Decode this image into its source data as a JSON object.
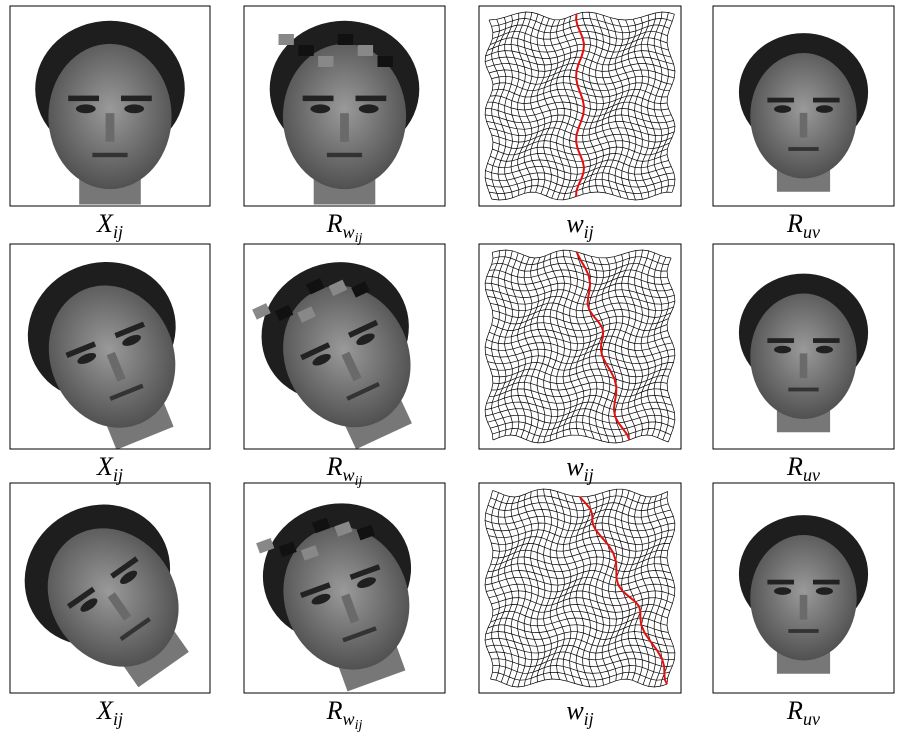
{
  "figure": {
    "rows": [
      {
        "panels": [
          {
            "caption": {
              "base": "X",
              "sub": "ij"
            }
          },
          {
            "caption": {
              "base": "R",
              "sub": "w",
              "subsub": "ij"
            }
          },
          {
            "caption": {
              "base": "w",
              "sub": "ij"
            }
          },
          {
            "caption": {
              "base": "R",
              "sub": "uv"
            }
          }
        ]
      },
      {
        "panels": [
          {
            "caption": {
              "base": "X",
              "sub": "ij"
            }
          },
          {
            "caption": {
              "base": "R",
              "sub": "w",
              "subsub": "ij"
            }
          },
          {
            "caption": {
              "base": "w",
              "sub": "ij"
            }
          },
          {
            "caption": {
              "base": "R",
              "sub": "uv"
            }
          }
        ]
      },
      {
        "panels": [
          {
            "caption": {
              "base": "X",
              "sub": "ij"
            }
          },
          {
            "caption": {
              "base": "R",
              "sub": "w",
              "subsub": "ij"
            }
          },
          {
            "caption": {
              "base": "w",
              "sub": "ij"
            }
          },
          {
            "caption": {
              "base": "R",
              "sub": "uv"
            }
          }
        ]
      }
    ]
  }
}
